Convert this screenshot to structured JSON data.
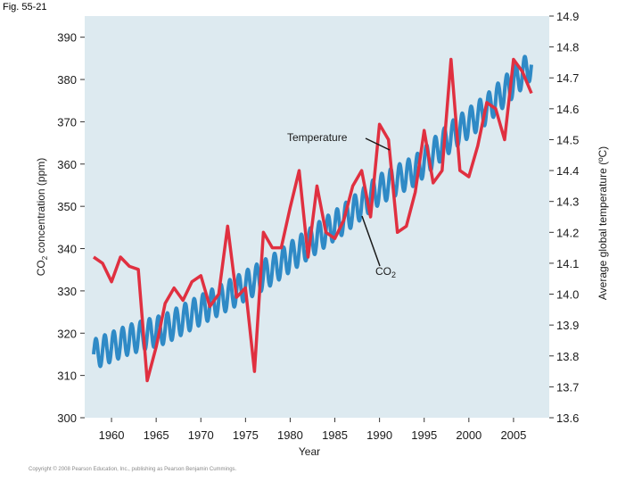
{
  "figure_label": "Fig. 55-21",
  "copyright": "Copyright © 2008 Pearson Education, Inc., publishing as Pearson Benjamin Cummings.",
  "colors": {
    "plot_background": "#ddeaf0",
    "temperature": "#e03040",
    "co2": "#2f8ac6"
  },
  "chart_data": {
    "type": "line",
    "xlabel": "Year",
    "ylabel_left": "CO2 concentration (ppm)",
    "ylabel_left_main": "CO",
    "ylabel_left_sub": "2",
    "ylabel_left_tail": " concentration (ppm)",
    "ylabel_right": "Average global temperature (ºC)",
    "xlim": [
      1957,
      2009
    ],
    "ylim_left": [
      300,
      395
    ],
    "ylim_right": [
      13.6,
      14.9
    ],
    "x_ticks": [
      1960,
      1965,
      1970,
      1975,
      1980,
      1985,
      1990,
      1995,
      2000,
      2005
    ],
    "y_ticks_left": [
      300,
      310,
      320,
      330,
      340,
      350,
      360,
      370,
      380,
      390
    ],
    "y_ticks_right": [
      "13.6",
      "13.7",
      "13.8",
      "13.9",
      "14.0",
      "14.1",
      "14.2",
      "14.3",
      "14.4",
      "14.5",
      "14.6",
      "14.7",
      "14.8",
      "14.9"
    ],
    "annotations": {
      "temperature_label": "Temperature",
      "co2_label_main": "CO",
      "co2_label_sub": "2"
    },
    "series": [
      {
        "name": "Temperature",
        "axis": "right",
        "years": [
          1958,
          1959,
          1960,
          1961,
          1962,
          1963,
          1964,
          1965,
          1966,
          1967,
          1968,
          1969,
          1970,
          1971,
          1972,
          1973,
          1974,
          1975,
          1976,
          1977,
          1978,
          1979,
          1980,
          1981,
          1982,
          1983,
          1984,
          1985,
          1986,
          1987,
          1988,
          1989,
          1990,
          1991,
          1992,
          1993,
          1994,
          1995,
          1996,
          1997,
          1998,
          1999,
          2000,
          2001,
          2002,
          2003,
          2004,
          2005,
          2006,
          2007
        ],
        "values": [
          14.12,
          14.1,
          14.04,
          14.12,
          14.09,
          14.08,
          13.72,
          13.83,
          13.97,
          14.02,
          13.98,
          14.04,
          14.06,
          13.96,
          14.0,
          14.22,
          13.99,
          14.02,
          13.75,
          14.2,
          14.15,
          14.15,
          14.28,
          14.4,
          14.12,
          14.35,
          14.2,
          14.18,
          14.24,
          14.35,
          14.4,
          14.25,
          14.55,
          14.5,
          14.2,
          14.22,
          14.33,
          14.53,
          14.36,
          14.4,
          14.76,
          14.4,
          14.38,
          14.48,
          14.62,
          14.6,
          14.5,
          14.76,
          14.72,
          14.65
        ]
      },
      {
        "name": "CO2",
        "axis": "left",
        "years": [
          1958,
          1962,
          1966,
          1970,
          1974,
          1978,
          1982,
          1986,
          1990,
          1994,
          1998,
          2002,
          2007
        ],
        "values": [
          315.0,
          318.5,
          321.0,
          325.5,
          330.0,
          335.0,
          341.0,
          347.0,
          354.0,
          358.5,
          366.5,
          373.0,
          383.5
        ],
        "seasonal_amplitude_ppm": 3.5
      }
    ]
  }
}
